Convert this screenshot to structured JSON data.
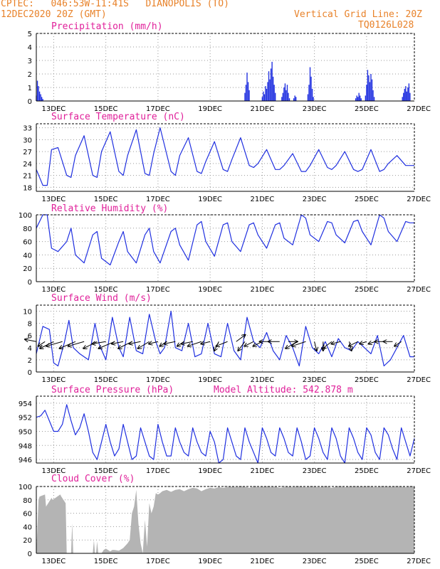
{
  "header": {
    "line1": "CPTEC:   046:53W-11:41S   DIANOPOLIS (TO)",
    "line2": "12DEC2020 20Z (GMT)",
    "grid_note": "Vertical Grid Line: 20Z",
    "model_code": "TQ0126L028"
  },
  "colors": {
    "header": "#e8822a",
    "title": "#e0209a",
    "series": "#2030e0",
    "cloud": "#b4b4b4",
    "grid": "#9a9a9a"
  },
  "chart_data": [
    {
      "type": "bar",
      "title": "Precipitation (mm/h)",
      "x_range_hours": [
        0,
        348
      ],
      "x_ticks": [
        {
          "h": 16,
          "label": "13DEC"
        },
        {
          "h": 64,
          "label": "15DEC"
        },
        {
          "h": 112,
          "label": "17DEC"
        },
        {
          "h": 160,
          "label": "19DEC"
        },
        {
          "h": 208,
          "label": "21DEC"
        },
        {
          "h": 256,
          "label": "23DEC"
        },
        {
          "h": 304,
          "label": "25DEC"
        },
        {
          "h": 352,
          "label": "27DEC"
        }
      ],
      "ylim": [
        0,
        5
      ],
      "yticks": [
        0,
        1,
        2,
        3,
        4,
        5
      ],
      "bursts": [
        {
          "h": [
            0,
            1,
            2,
            3,
            4,
            5,
            6
          ],
          "v": [
            0.4,
            1.5,
            1.1,
            0.7,
            0.5,
            0.3,
            0.15
          ]
        },
        {
          "h": [
            192,
            193,
            194,
            195,
            196
          ],
          "v": [
            0.6,
            1.2,
            2.1,
            1.4,
            0.8
          ]
        },
        {
          "h": [
            208,
            209,
            210,
            211,
            212,
            213,
            214,
            215,
            216,
            217,
            218,
            219,
            220
          ],
          "v": [
            0.3,
            0.7,
            0.5,
            1.1,
            0.9,
            1.4,
            2.2,
            1.6,
            2.4,
            2.9,
            1.8,
            1.2,
            0.6
          ]
        },
        {
          "h": [
            226,
            227,
            228,
            229,
            230,
            231,
            232,
            233
          ],
          "v": [
            0.3,
            0.6,
            1.0,
            1.3,
            0.8,
            1.2,
            0.6,
            0.2
          ]
        },
        {
          "h": [
            237,
            238,
            239
          ],
          "v": [
            0.2,
            0.4,
            0.3
          ]
        },
        {
          "h": [
            250,
            251,
            252,
            253,
            254,
            255
          ],
          "v": [
            0.5,
            1.2,
            2.5,
            1.8,
            0.9,
            0.3
          ]
        },
        {
          "h": [
            294,
            295,
            296,
            297,
            298,
            299
          ],
          "v": [
            0.2,
            0.4,
            0.3,
            0.6,
            0.4,
            0.2
          ]
        },
        {
          "h": [
            303,
            304,
            305,
            306,
            307,
            308,
            309,
            310,
            311
          ],
          "v": [
            0.4,
            1.2,
            2.3,
            1.9,
            1.4,
            2.0,
            1.6,
            0.8,
            0.3
          ]
        },
        {
          "h": [
            337,
            338,
            339,
            340,
            341,
            342,
            343,
            344
          ],
          "v": [
            0.3,
            0.6,
            0.9,
            1.1,
            0.7,
            1.0,
            1.3,
            0.6
          ]
        }
      ]
    },
    {
      "type": "line",
      "title": "Surface Temperature (nC)",
      "ylim": [
        17,
        34
      ],
      "yticks": [
        18,
        21,
        24,
        27,
        30,
        33
      ],
      "x": [
        0,
        6,
        10,
        14,
        20,
        28,
        32,
        36,
        44,
        52,
        56,
        60,
        68,
        76,
        80,
        84,
        92,
        100,
        104,
        108,
        114,
        124,
        128,
        132,
        140,
        148,
        152,
        156,
        164,
        172,
        176,
        180,
        188,
        196,
        200,
        204,
        212,
        220,
        224,
        228,
        236,
        244,
        248,
        252,
        260,
        268,
        272,
        276,
        284,
        292,
        296,
        300,
        308,
        316,
        320,
        324,
        332,
        340,
        344,
        348
      ],
      "y": [
        22.5,
        18.5,
        18.5,
        27.5,
        28,
        21,
        20.5,
        26,
        31,
        21,
        20.5,
        27,
        32,
        22,
        21,
        26,
        32.5,
        21.5,
        21,
        26.5,
        33,
        22,
        21,
        26,
        30.5,
        22,
        21.5,
        24.5,
        29.5,
        22.5,
        22,
        25,
        30.5,
        23.5,
        23,
        24,
        27.5,
        22.5,
        22.5,
        23.5,
        26.5,
        22,
        22,
        23.5,
        27.5,
        23,
        22.5,
        23.5,
        27,
        22.5,
        22,
        22.5,
        27.5,
        22,
        22.5,
        24,
        26,
        23.5,
        23.5,
        23.5
      ]
    },
    {
      "type": "line",
      "title": "Relative Humidity (%)",
      "ylim": [
        0,
        100
      ],
      "yticks": [
        0,
        20,
        40,
        60,
        80,
        100
      ],
      "x": [
        0,
        6,
        10,
        14,
        20,
        28,
        32,
        36,
        44,
        52,
        56,
        60,
        68,
        76,
        80,
        84,
        92,
        100,
        104,
        108,
        114,
        124,
        128,
        132,
        140,
        148,
        152,
        156,
        164,
        172,
        176,
        180,
        188,
        196,
        200,
        204,
        212,
        220,
        224,
        228,
        236,
        244,
        248,
        252,
        260,
        268,
        272,
        276,
        284,
        292,
        296,
        300,
        308,
        316,
        320,
        324,
        332,
        340,
        344,
        348
      ],
      "y": [
        80,
        100,
        100,
        50,
        45,
        60,
        80,
        40,
        28,
        70,
        75,
        35,
        25,
        60,
        75,
        45,
        28,
        70,
        80,
        45,
        28,
        75,
        80,
        55,
        32,
        85,
        90,
        60,
        38,
        85,
        88,
        60,
        45,
        85,
        88,
        70,
        50,
        85,
        88,
        65,
        55,
        100,
        95,
        70,
        60,
        90,
        88,
        70,
        58,
        90,
        92,
        75,
        55,
        100,
        95,
        75,
        60,
        90,
        88,
        88
      ]
    },
    {
      "type": "line",
      "title": "Surface Wind (m/s)",
      "ylim": [
        0,
        11
      ],
      "yticks": [
        0,
        2,
        4,
        6,
        8,
        10
      ],
      "x": [
        0,
        6,
        12,
        16,
        20,
        26,
        30,
        34,
        40,
        48,
        54,
        58,
        64,
        70,
        76,
        80,
        86,
        92,
        98,
        104,
        110,
        114,
        118,
        124,
        128,
        134,
        140,
        146,
        152,
        158,
        164,
        170,
        176,
        182,
        188,
        194,
        200,
        206,
        212,
        218,
        224,
        230,
        236,
        242,
        248,
        254,
        260,
        266,
        272,
        278,
        284,
        290,
        296,
        302,
        308,
        314,
        320,
        326,
        332,
        338,
        344,
        348
      ],
      "y": [
        3,
        7.5,
        7,
        1.5,
        1,
        5,
        8.5,
        4,
        3,
        2,
        8,
        4.5,
        2,
        9,
        4,
        2.5,
        9,
        3.5,
        3,
        9.5,
        5,
        3,
        4,
        10,
        4,
        3.5,
        8,
        2.5,
        3,
        8,
        3,
        2.5,
        8,
        3.5,
        2,
        9,
        5,
        4,
        6.5,
        3.5,
        2,
        6,
        4,
        1,
        7.5,
        4,
        3,
        5,
        2.5,
        5.5,
        4,
        3.5,
        5,
        4,
        3,
        6,
        1,
        2,
        4,
        6,
        2.5,
        2.5
      ],
      "vectors": [
        {
          "h": 0,
          "u": -5,
          "v": 1
        },
        {
          "h": 8,
          "u": -3,
          "v": -2
        },
        {
          "h": 16,
          "u": -6,
          "v": -3
        },
        {
          "h": 24,
          "u": -7,
          "v": -2
        },
        {
          "h": 36,
          "u": -7,
          "v": -3
        },
        {
          "h": 44,
          "u": -7,
          "v": -2
        },
        {
          "h": 56,
          "u": -6,
          "v": -3
        },
        {
          "h": 64,
          "u": -6,
          "v": -1
        },
        {
          "h": 72,
          "u": -7,
          "v": -3
        },
        {
          "h": 80,
          "u": -5,
          "v": -1
        },
        {
          "h": 88,
          "u": -6,
          "v": -3
        },
        {
          "h": 96,
          "u": -5,
          "v": -1
        },
        {
          "h": 104,
          "u": -5,
          "v": -3
        },
        {
          "h": 112,
          "u": -4,
          "v": -1
        },
        {
          "h": 120,
          "u": -3,
          "v": -2
        },
        {
          "h": 128,
          "u": -5,
          "v": -1
        },
        {
          "h": 136,
          "u": -3,
          "v": -2
        },
        {
          "h": 144,
          "u": -5,
          "v": -1
        },
        {
          "h": 152,
          "u": -6,
          "v": -2
        },
        {
          "h": 160,
          "u": -4,
          "v": -1
        },
        {
          "h": 168,
          "u": -2,
          "v": -4
        },
        {
          "h": 176,
          "u": -5,
          "v": -2
        },
        {
          "h": 184,
          "u": 4,
          "v": 3
        },
        {
          "h": 192,
          "u": -3,
          "v": -4
        },
        {
          "h": 200,
          "u": -4,
          "v": -2
        },
        {
          "h": 208,
          "u": -4,
          "v": -2
        },
        {
          "h": 216,
          "u": -5,
          "v": 0
        },
        {
          "h": 224,
          "u": -5,
          "v": 0
        },
        {
          "h": 232,
          "u": 4,
          "v": 0
        },
        {
          "h": 240,
          "u": -5,
          "v": -3
        },
        {
          "h": 248,
          "u": -6,
          "v": -2
        },
        {
          "h": 256,
          "u": 1,
          "v": -4
        },
        {
          "h": 264,
          "u": 0,
          "v": -4
        },
        {
          "h": 272,
          "u": -4,
          "v": -3
        },
        {
          "h": 280,
          "u": -4,
          "v": -1
        },
        {
          "h": 288,
          "u": 1,
          "v": -4
        },
        {
          "h": 296,
          "u": -4,
          "v": -2
        },
        {
          "h": 304,
          "u": -3,
          "v": -1
        },
        {
          "h": 312,
          "u": -3,
          "v": -1
        },
        {
          "h": 320,
          "u": -4,
          "v": 0
        },
        {
          "h": 328,
          "u": -4,
          "v": 0
        },
        {
          "h": 336,
          "u": -3,
          "v": -2
        }
      ]
    },
    {
      "type": "line",
      "title": "Surface Pressure (hPa)",
      "subtitle": "Model Altitude: 542.878 m",
      "ylim": [
        945.5,
        955
      ],
      "yticks": [
        946,
        948,
        950,
        952,
        954
      ],
      "x": [
        0,
        4,
        8,
        12,
        16,
        20,
        24,
        28,
        32,
        36,
        40,
        44,
        48,
        52,
        56,
        60,
        64,
        68,
        72,
        76,
        80,
        84,
        88,
        92,
        96,
        100,
        104,
        108,
        112,
        116,
        120,
        124,
        128,
        132,
        136,
        140,
        144,
        148,
        152,
        156,
        160,
        164,
        168,
        172,
        176,
        180,
        184,
        188,
        192,
        196,
        200,
        204,
        208,
        212,
        216,
        220,
        224,
        228,
        232,
        236,
        240,
        244,
        248,
        252,
        256,
        260,
        264,
        268,
        272,
        276,
        280,
        284,
        288,
        292,
        296,
        300,
        304,
        308,
        312,
        316,
        320,
        324,
        328,
        332,
        336,
        340,
        344,
        348
      ],
      "y": [
        952,
        952.2,
        953,
        951.5,
        950,
        950,
        951,
        953.8,
        951.5,
        949.5,
        950.5,
        952.5,
        950,
        947,
        946,
        948.5,
        951,
        948.5,
        946.5,
        947.5,
        951,
        948.5,
        946,
        946.5,
        950.5,
        948.5,
        946.5,
        946,
        951,
        948.5,
        946.5,
        946.5,
        950.5,
        948.5,
        947,
        946.5,
        950.5,
        948.5,
        947,
        946.5,
        950,
        948.5,
        945.5,
        946,
        950.5,
        948.5,
        946.5,
        946,
        950.5,
        948.5,
        947,
        945.5,
        950.5,
        949,
        947,
        946.5,
        950.5,
        949,
        947,
        946.5,
        950.5,
        948.5,
        946,
        946.5,
        950.5,
        949,
        947,
        946,
        950.5,
        949,
        946.5,
        945.5,
        950.5,
        949,
        947,
        946,
        950.5,
        949.5,
        947,
        946,
        950.5,
        949.5,
        947.5,
        946,
        950.5,
        948.5,
        946.5,
        949
      ]
    },
    {
      "type": "area",
      "title": "Cloud Cover (%)",
      "ylim": [
        0,
        100
      ],
      "yticks": [
        0,
        20,
        40,
        60,
        80,
        100
      ],
      "x": [
        0,
        2,
        3,
        8,
        9,
        14,
        15,
        22,
        23,
        27,
        28,
        32,
        33,
        34,
        35,
        52,
        53,
        54,
        55,
        56,
        57,
        60,
        62,
        64,
        66,
        68,
        70,
        72,
        76,
        80,
        84,
        86,
        88,
        90,
        92,
        94,
        96,
        98,
        100,
        102,
        104,
        106,
        108,
        110,
        112,
        114,
        116,
        120,
        124,
        128,
        132,
        136,
        140,
        144,
        148,
        152,
        156,
        160,
        164,
        168,
        172,
        176,
        180,
        184,
        188,
        192,
        196,
        200,
        204,
        208,
        212,
        216,
        220,
        224,
        228,
        232,
        236,
        240,
        244,
        248,
        252,
        256,
        260,
        264,
        268,
        272,
        276,
        280,
        284,
        288,
        292,
        296,
        300,
        304,
        308,
        312,
        316,
        320,
        324,
        328,
        332,
        336,
        340,
        344,
        348
      ],
      "y": [
        0,
        80,
        85,
        88,
        70,
        83,
        80,
        88,
        85,
        75,
        0,
        0,
        45,
        0,
        0,
        0,
        20,
        0,
        0,
        18,
        0,
        0,
        5,
        7,
        5,
        3,
        5,
        5,
        4,
        8,
        15,
        20,
        60,
        70,
        95,
        45,
        15,
        0,
        50,
        10,
        75,
        60,
        70,
        90,
        88,
        90,
        93,
        95,
        92,
        95,
        96,
        93,
        96,
        98,
        97,
        93,
        96,
        98,
        97,
        99,
        98,
        99,
        100,
        99,
        100,
        100,
        98,
        100,
        99,
        100,
        100,
        99,
        100,
        98,
        99,
        100,
        99,
        100,
        100,
        99,
        100,
        100,
        99,
        100,
        100,
        98,
        100,
        100,
        99,
        100,
        100,
        100,
        100,
        100,
        100,
        99,
        100,
        100,
        100,
        100,
        100,
        100,
        99,
        100,
        100
      ]
    }
  ]
}
